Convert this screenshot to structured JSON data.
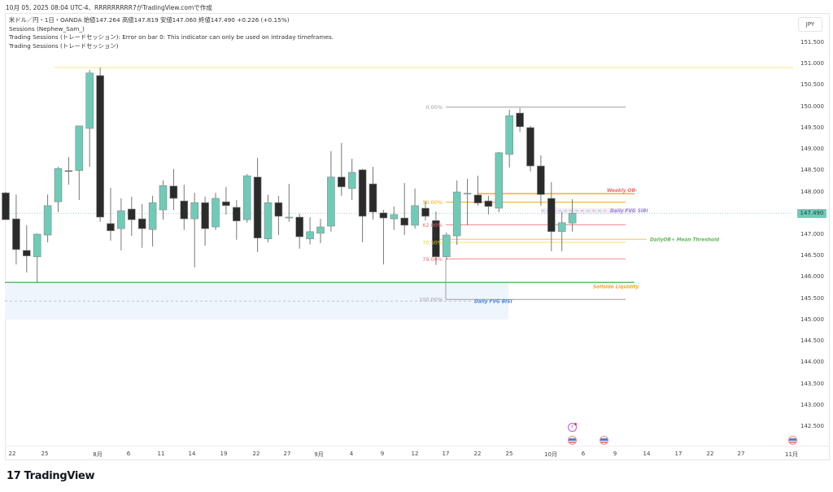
{
  "caption": "10月 05, 2025 08:04 UTC-4、RRRRRRRRR7がTradingView.comで作成",
  "legend": {
    "symbol_line": "米ドル／円・1日・OANDA  始値147.264  高値147.819  安値147.060  終値147.490  +0.226 (+0.15%)",
    "indicator1": "Sessions (Nephew_Sam_)",
    "indicator2": "Trading Sessions (トレードセッション): Error on bar 0: This indicator can only be used on intraday timeframes.",
    "indicator3": "Trading Sessions (トレードセッション)"
  },
  "price_axis": {
    "currency": "JPY",
    "ticks": [
      "151.500",
      "151.000",
      "150.500",
      "150.000",
      "149.500",
      "149.000",
      "148.500",
      "148.000",
      "147.500",
      "147.000",
      "146.500",
      "146.000",
      "145.500",
      "145.000",
      "144.500",
      "144.000",
      "143.500",
      "143.000",
      "142.500"
    ],
    "current_price": "147.490"
  },
  "time_axis": {
    "ticks": [
      "22",
      "25",
      "8月",
      "6",
      "11",
      "14",
      "19",
      "22",
      "27",
      "9月",
      "4",
      "9",
      "12",
      "17",
      "22",
      "25",
      "10月",
      "6",
      "9",
      "14",
      "17",
      "22",
      "27",
      "11月"
    ]
  },
  "colors": {
    "up": "#6fcbb7",
    "down": "#2b2b2b",
    "wick": "#777777",
    "current_price": "#6fcbb7"
  },
  "chart_data": {
    "type": "candlestick",
    "symbol": "USD/JPY",
    "timeframe": "1D",
    "ylim": [
      142.3,
      151.8
    ],
    "candles": [
      [
        147.97,
        147.99,
        147.34,
        147.34
      ],
      [
        147.36,
        147.93,
        146.29,
        146.64
      ],
      [
        146.62,
        147.21,
        146.1,
        146.49
      ],
      [
        146.47,
        147.02,
        145.86,
        147.0
      ],
      [
        146.98,
        147.93,
        146.81,
        147.67
      ],
      [
        147.76,
        148.58,
        147.52,
        148.54
      ],
      [
        148.49,
        148.81,
        148.16,
        148.48
      ],
      [
        148.49,
        149.54,
        147.8,
        149.54
      ],
      [
        149.48,
        150.85,
        148.58,
        150.78
      ],
      [
        150.72,
        150.91,
        147.29,
        147.4
      ],
      [
        147.25,
        148.09,
        146.85,
        147.08
      ],
      [
        147.13,
        147.84,
        146.62,
        147.55
      ],
      [
        147.59,
        147.88,
        146.96,
        147.34
      ],
      [
        147.36,
        147.71,
        146.68,
        147.13
      ],
      [
        147.11,
        147.9,
        146.71,
        147.74
      ],
      [
        147.57,
        148.26,
        147.34,
        148.14
      ],
      [
        148.13,
        148.53,
        147.57,
        147.84
      ],
      [
        147.78,
        148.16,
        147.1,
        147.36
      ],
      [
        147.36,
        147.97,
        146.22,
        147.74
      ],
      [
        147.74,
        147.88,
        146.73,
        147.13
      ],
      [
        147.17,
        147.97,
        147.1,
        147.84
      ],
      [
        147.76,
        148.11,
        147.46,
        147.67
      ],
      [
        147.63,
        147.8,
        146.87,
        147.31
      ],
      [
        147.34,
        148.41,
        147.27,
        148.37
      ],
      [
        148.34,
        148.79,
        146.58,
        146.91
      ],
      [
        146.89,
        147.93,
        146.81,
        147.74
      ],
      [
        147.74,
        147.9,
        146.98,
        147.42
      ],
      [
        147.38,
        148.18,
        147.29,
        147.4
      ],
      [
        147.4,
        147.48,
        146.66,
        146.94
      ],
      [
        146.89,
        147.4,
        146.76,
        147.06
      ],
      [
        147.02,
        147.36,
        146.79,
        147.17
      ],
      [
        147.19,
        148.95,
        147.06,
        148.34
      ],
      [
        148.34,
        149.14,
        147.9,
        148.11
      ],
      [
        148.07,
        148.77,
        147.8,
        148.45
      ],
      [
        148.51,
        148.53,
        146.81,
        147.42
      ],
      [
        148.18,
        148.58,
        147.34,
        147.52
      ],
      [
        147.5,
        147.57,
        146.29,
        147.38
      ],
      [
        147.36,
        147.65,
        147.1,
        147.46
      ],
      [
        147.38,
        148.2,
        146.98,
        147.21
      ],
      [
        147.21,
        148.07,
        147.13,
        147.67
      ],
      [
        147.61,
        147.78,
        147.32,
        147.42
      ],
      [
        147.32,
        147.53,
        146.28,
        146.47
      ],
      [
        146.47,
        147.04,
        146.39,
        146.98
      ],
      [
        146.96,
        148.26,
        146.75,
        147.99
      ],
      [
        147.95,
        148.3,
        147.21,
        147.96
      ],
      [
        147.92,
        148.37,
        147.67,
        147.73
      ],
      [
        147.78,
        147.9,
        147.46,
        147.65
      ],
      [
        147.61,
        148.93,
        147.52,
        148.91
      ],
      [
        148.87,
        149.92,
        148.56,
        149.78
      ],
      [
        149.84,
        149.96,
        149.4,
        149.52
      ],
      [
        149.5,
        149.54,
        148.47,
        148.6
      ],
      [
        148.6,
        148.85,
        147.67,
        147.93
      ],
      [
        147.84,
        148.22,
        146.6,
        147.06
      ],
      [
        147.06,
        147.52,
        146.6,
        147.27
      ],
      [
        147.26,
        147.82,
        147.06,
        147.49
      ]
    ],
    "candle_fields": [
      "open",
      "high",
      "low",
      "close"
    ],
    "levels": {
      "resistance_line": 150.91,
      "weekly_ob": {
        "price": 147.95,
        "label": "Weekly OB-"
      },
      "daily_fvg_sibi": {
        "price": 147.55,
        "label": "Daily FVG SIBI"
      },
      "dailyob_mean_threshold": {
        "price": 146.88,
        "label": "DailyOB+ Mean Threshold"
      },
      "sellside_liquidity": {
        "price": 145.87,
        "label": "Sellside Liquidity"
      },
      "daily_fvg_bisi": {
        "top": 145.87,
        "bottom": 145.0,
        "mid": 145.43,
        "label": "Daily FVG BISI"
      }
    },
    "fibonacci": [
      {
        "label": "0.00%",
        "price": 149.98
      },
      {
        "label": "50.00%",
        "price": 147.75
      },
      {
        "label": "62.00%",
        "price": 147.22
      },
      {
        "label": "70.50%",
        "price": 146.81
      },
      {
        "label": "79.00%",
        "price": 146.42
      },
      {
        "label": "100.00%",
        "price": 145.47
      }
    ]
  }
}
